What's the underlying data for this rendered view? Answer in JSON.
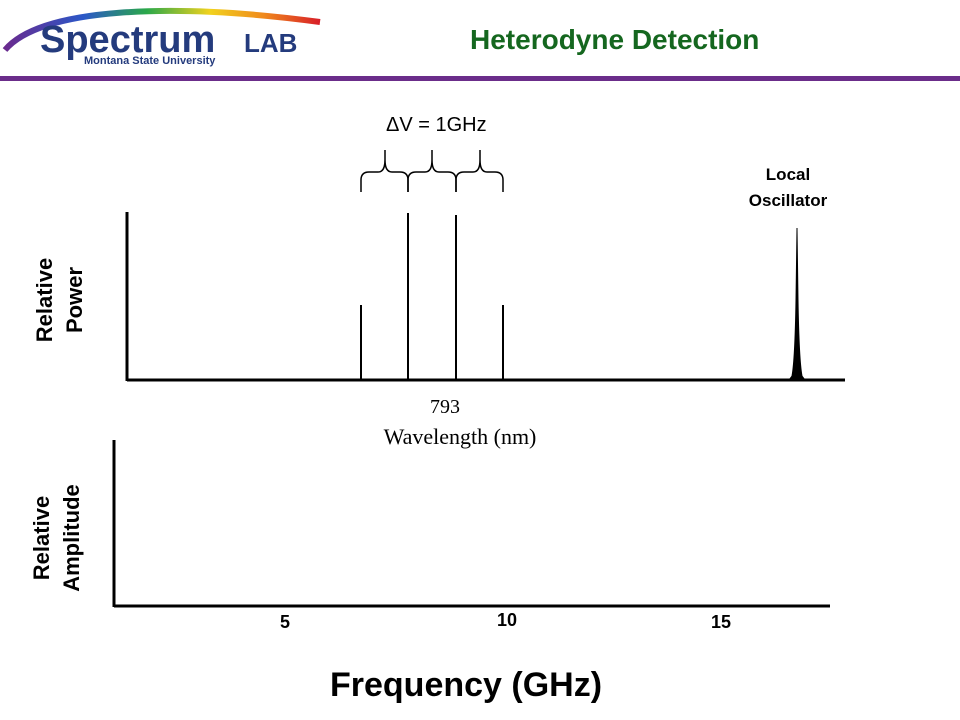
{
  "logo": {
    "main": "Spectrum",
    "lab": "LAB",
    "sub": "Montana State University"
  },
  "header": {
    "title": "Heterodyne Detection",
    "rule_color": "#6b2d8a",
    "title_color": "#15671f"
  },
  "spacing_label": "ΔV = 1GHz",
  "local_oscillator_label": "Local\nOscillator",
  "top_plot": {
    "ylabel": "Relative\nPower",
    "center_value": "793",
    "xlabel": "Wavelength (nm)"
  },
  "bottom_plot": {
    "ylabel": "Relative\nAmplitude",
    "ticks": [
      "5",
      "10",
      "15"
    ],
    "xlabel": "Frequency (GHz)"
  }
}
